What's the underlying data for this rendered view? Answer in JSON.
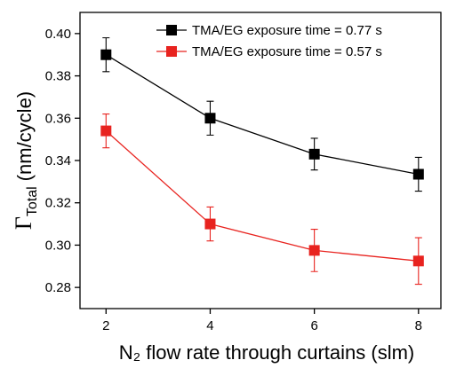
{
  "chart_data": {
    "type": "line",
    "x_label": "N₂ flow rate through curtains (slm)",
    "y_label": {
      "symbol": "Γ",
      "subscript": "Total",
      "unit": "(nm/cycle)"
    },
    "x": [
      2,
      4,
      6,
      8
    ],
    "series": [
      {
        "name": "TMA/EG exposure time = 0.77 s",
        "color": "#000000",
        "values": [
          0.39,
          0.36,
          0.343,
          0.3335
        ],
        "errors": [
          0.008,
          0.008,
          0.0075,
          0.008
        ]
      },
      {
        "name": "TMA/EG exposure time = 0.57 s",
        "color": "#e8231f",
        "values": [
          0.354,
          0.31,
          0.2975,
          0.2925
        ],
        "errors": [
          0.008,
          0.008,
          0.01,
          0.011
        ]
      }
    ],
    "xlim": [
      1.5,
      8.43
    ],
    "ylim": [
      0.27,
      0.41
    ],
    "xticks": [
      2,
      4,
      6,
      8
    ],
    "yticks": [
      0.28,
      {
        "value": 0.3,
        "label": "0.30"
      },
      0.32,
      0.34,
      0.36,
      0.38,
      {
        "value": 0.4,
        "label": "0.40"
      }
    ],
    "legend": "upper right",
    "grid": false
  }
}
